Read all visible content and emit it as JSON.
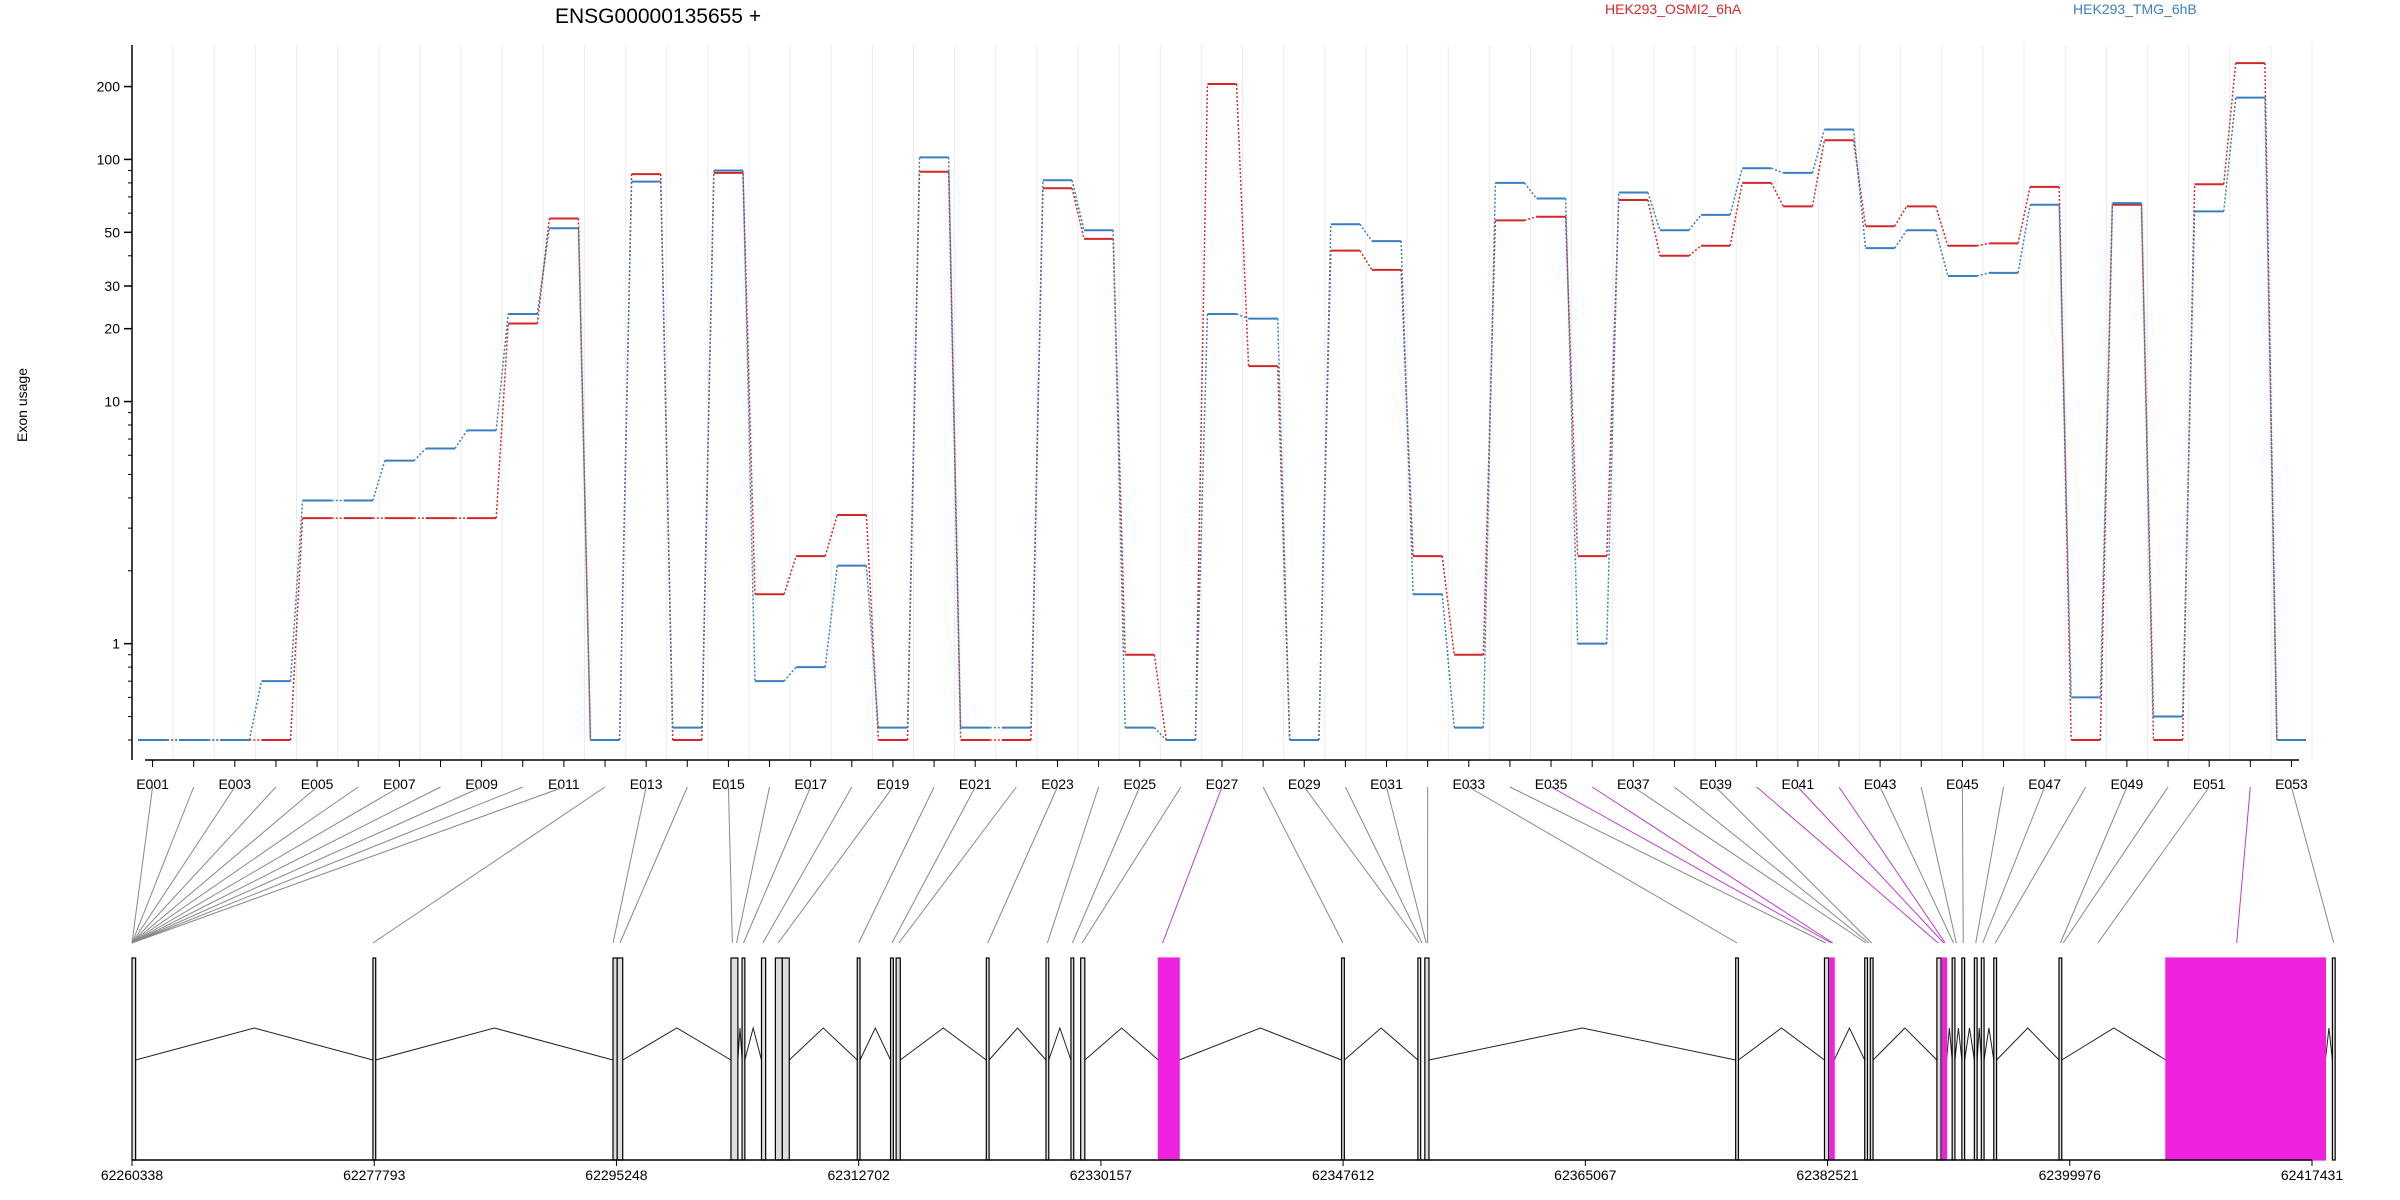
{
  "chart_data": {
    "type": "line",
    "title": "ENSG00000135655 +",
    "ylabel": "Exon usage",
    "yscale": "log",
    "ylim": [
      0.4,
      270
    ],
    "yticks": [
      1,
      10,
      20,
      30,
      50,
      100,
      200
    ],
    "grid": true,
    "legend_position": "top",
    "series": [
      {
        "name": "HEK293_OSMI2_6hA",
        "color": "#d62728",
        "values": [
          0.4,
          0.4,
          0.4,
          0.4,
          3.3,
          3.3,
          3.3,
          3.3,
          3.3,
          21,
          57,
          0.4,
          87,
          0.4,
          88,
          1.6,
          2.3,
          3.4,
          0.4,
          89,
          0.4,
          0.4,
          76,
          47,
          0.9,
          0.4,
          205,
          14,
          0.4,
          42,
          35,
          2.3,
          0.9,
          56,
          58,
          2.3,
          68,
          40,
          44,
          80,
          64,
          120,
          53,
          64,
          44,
          45,
          77,
          0.4,
          65,
          0.4,
          79,
          250,
          0.4
        ]
      },
      {
        "name": "HEK293_TMG_6hB",
        "color": "#3a7fc1",
        "values": [
          0.4,
          0.4,
          0.4,
          0.7,
          3.9,
          3.9,
          5.7,
          6.4,
          7.6,
          23,
          52,
          0.4,
          81,
          0.45,
          90,
          0.7,
          0.8,
          2.1,
          0.45,
          102,
          0.45,
          0.45,
          82,
          51,
          0.45,
          0.4,
          23,
          22,
          0.4,
          54,
          46,
          1.6,
          0.45,
          80,
          69,
          1.0,
          73,
          51,
          59,
          92,
          88,
          133,
          43,
          51,
          33,
          34,
          65,
          0.6,
          66,
          0.5,
          61,
          180,
          0.4
        ]
      }
    ],
    "exon_labels": [
      "E001",
      "E003",
      "E005",
      "E007",
      "E009",
      "E011",
      "E013",
      "E015",
      "E017",
      "E019",
      "E021",
      "E023",
      "E025",
      "E027",
      "E029",
      "E031",
      "E033",
      "E035",
      "E037",
      "E039",
      "E041",
      "E043",
      "E045",
      "E047",
      "E049",
      "E051",
      "E053"
    ],
    "genomic_axis": {
      "range": [
        62260338,
        62417431
      ],
      "tick_labels": [
        "62260338",
        "62277793",
        "62295248",
        "62312702",
        "62330157",
        "62347612",
        "62365067",
        "62382521",
        "62399976",
        "62417431"
      ]
    },
    "gene_model": {
      "highlight_color": "#ee22dd",
      "exons": [
        [
          62260338,
          62260600,
          0
        ],
        [
          62277700,
          62277900,
          0
        ],
        [
          62295000,
          62295300,
          0
        ],
        [
          62295300,
          62295700,
          0
        ],
        [
          62303500,
          62304000,
          0
        ],
        [
          62304300,
          62304500,
          0
        ],
        [
          62305700,
          62306000,
          0
        ],
        [
          62306700,
          62307200,
          0
        ],
        [
          62307200,
          62307700,
          0
        ],
        [
          62312600,
          62312800,
          0
        ],
        [
          62315000,
          62315200,
          0
        ],
        [
          62315400,
          62315700,
          0
        ],
        [
          62321900,
          62322100,
          0
        ],
        [
          62326200,
          62326400,
          0
        ],
        [
          62328000,
          62328200,
          0
        ],
        [
          62328700,
          62329000,
          0
        ],
        [
          62334300,
          62335800,
          1
        ],
        [
          62347500,
          62347700,
          0
        ],
        [
          62353000,
          62353200,
          0
        ],
        [
          62353500,
          62353800,
          0
        ],
        [
          62375900,
          62376100,
          0
        ],
        [
          62382300,
          62382600,
          0
        ],
        [
          62382700,
          62383000,
          1
        ],
        [
          62385200,
          62385400,
          0
        ],
        [
          62385600,
          62385800,
          0
        ],
        [
          62390400,
          62390700,
          0
        ],
        [
          62390800,
          62391100,
          1
        ],
        [
          62391500,
          62391700,
          0
        ],
        [
          62392200,
          62392400,
          0
        ],
        [
          62393100,
          62393300,
          0
        ],
        [
          62393600,
          62393800,
          0
        ],
        [
          62394500,
          62394700,
          0
        ],
        [
          62399200,
          62399400,
          0
        ],
        [
          62406900,
          62418400,
          1
        ],
        [
          62418900,
          62419100,
          0
        ]
      ],
      "junctions": [
        [
          62260600,
          62277700
        ],
        [
          62277900,
          62295000
        ],
        [
          62295700,
          62303500
        ],
        [
          62304000,
          62304300
        ],
        [
          62304500,
          62305700
        ],
        [
          62307700,
          62312600
        ],
        [
          62312800,
          62315000
        ],
        [
          62315700,
          62321900
        ],
        [
          62322100,
          62326200
        ],
        [
          62326400,
          62328000
        ],
        [
          62329000,
          62334300
        ],
        [
          62335800,
          62347500
        ],
        [
          62347700,
          62353000
        ],
        [
          62353800,
          62375900
        ],
        [
          62376100,
          62382300
        ],
        [
          62383000,
          62385200
        ],
        [
          62385800,
          62390400
        ],
        [
          62391100,
          62391500
        ],
        [
          62391700,
          62392200
        ],
        [
          62392400,
          62393100
        ],
        [
          62393300,
          62393600
        ],
        [
          62393800,
          62394500
        ],
        [
          62394700,
          62399200
        ],
        [
          62399400,
          62406900
        ],
        [
          62418400,
          62418900
        ]
      ],
      "connector_targets": [
        [
          62260338,
          0
        ],
        [
          62260338,
          0
        ],
        [
          62260338,
          0
        ],
        [
          62260338,
          0
        ],
        [
          62260338,
          0
        ],
        [
          62260338,
          0
        ],
        [
          62260338,
          0
        ],
        [
          62260338,
          0
        ],
        [
          62260338,
          0
        ],
        [
          62260338,
          0
        ],
        [
          62260338,
          0
        ],
        [
          62277700,
          0
        ],
        [
          62295000,
          0
        ],
        [
          62295500,
          0
        ],
        [
          62303600,
          0
        ],
        [
          62303900,
          0
        ],
        [
          62304400,
          0
        ],
        [
          62305800,
          0
        ],
        [
          62306900,
          0
        ],
        [
          62312700,
          0
        ],
        [
          62315100,
          0
        ],
        [
          62315600,
          0
        ],
        [
          62322000,
          0
        ],
        [
          62326300,
          0
        ],
        [
          62328100,
          0
        ],
        [
          62328800,
          0
        ],
        [
          62334600,
          1
        ],
        [
          62347600,
          0
        ],
        [
          62353100,
          0
        ],
        [
          62353300,
          0
        ],
        [
          62353600,
          0
        ],
        [
          62353700,
          0
        ],
        [
          62376000,
          0
        ],
        [
          62382400,
          0
        ],
        [
          62382800,
          1
        ],
        [
          62382900,
          1
        ],
        [
          62385300,
          0
        ],
        [
          62385500,
          0
        ],
        [
          62385700,
          0
        ],
        [
          62390500,
          1
        ],
        [
          62390900,
          1
        ],
        [
          62391000,
          1
        ],
        [
          62391600,
          0
        ],
        [
          62391800,
          0
        ],
        [
          62392300,
          0
        ],
        [
          62393200,
          0
        ],
        [
          62393700,
          0
        ],
        [
          62394600,
          0
        ],
        [
          62399300,
          0
        ],
        [
          62399500,
          0
        ],
        [
          62402000,
          0
        ],
        [
          62412000,
          1
        ],
        [
          62419000,
          0
        ]
      ]
    }
  },
  "legend": [
    {
      "label": "HEK293_OSMI2_6hA",
      "color": "#d62728"
    },
    {
      "label": "HEK293_TMG_6hB",
      "color": "#3a7fc1"
    }
  ]
}
